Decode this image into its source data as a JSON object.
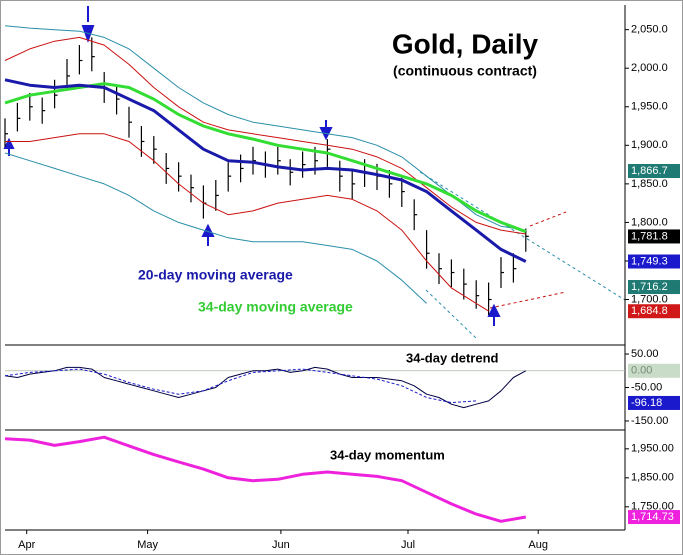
{
  "chart_data": [
    {
      "type": "ohlc",
      "title": "Gold, Daily",
      "subtitle": "(continuous contract)",
      "annotations": [
        "20-day moving average",
        "34-day moving average"
      ],
      "bar_color": "#000000",
      "x": [
        0,
        2,
        4,
        6,
        8,
        10,
        12,
        14,
        16,
        18,
        20,
        22,
        24,
        26,
        28,
        30,
        32,
        34,
        36,
        38,
        40,
        42,
        44,
        46,
        48,
        50,
        52,
        54,
        56,
        58,
        60,
        62,
        64,
        66,
        68,
        70,
        72,
        74,
        76,
        78,
        80,
        82,
        84
      ],
      "high": [
        1935,
        1955,
        1968,
        1962,
        1985,
        2012,
        2030,
        2040,
        1995,
        1978,
        1950,
        1925,
        1912,
        1890,
        1878,
        1862,
        1848,
        1855,
        1878,
        1888,
        1898,
        1892,
        1898,
        1882,
        1892,
        1898,
        1908,
        1880,
        1868,
        1882,
        1876,
        1868,
        1858,
        1830,
        1790,
        1760,
        1752,
        1740,
        1725,
        1722,
        1755,
        1760,
        1792
      ],
      "low": [
        1898,
        1918,
        1932,
        1928,
        1948,
        1972,
        1992,
        1996,
        1955,
        1940,
        1910,
        1885,
        1876,
        1850,
        1840,
        1826,
        1805,
        1815,
        1840,
        1852,
        1862,
        1858,
        1862,
        1848,
        1858,
        1862,
        1872,
        1840,
        1830,
        1846,
        1842,
        1832,
        1820,
        1790,
        1740,
        1720,
        1716,
        1700,
        1688,
        1680,
        1715,
        1722,
        1762
      ],
      "close": [
        1915,
        1935,
        1950,
        1945,
        1965,
        1990,
        2010,
        2015,
        1975,
        1960,
        1930,
        1905,
        1895,
        1870,
        1860,
        1845,
        1825,
        1835,
        1860,
        1870,
        1880,
        1875,
        1880,
        1865,
        1875,
        1880,
        1895,
        1860,
        1850,
        1865,
        1860,
        1850,
        1840,
        1810,
        1760,
        1740,
        1735,
        1720,
        1705,
        1700,
        1735,
        1740,
        1782
      ],
      "series": [
        {
          "name": "teal-upper",
          "color": "#2a8fa8",
          "width": 1,
          "x": [
            0,
            4,
            8,
            12,
            16,
            20,
            24,
            28,
            32,
            36,
            40,
            44,
            48,
            52,
            56,
            60,
            64,
            68,
            72,
            76,
            80,
            84
          ],
          "values": [
            2055,
            2052,
            2050,
            2048,
            2040,
            2025,
            2000,
            1975,
            1955,
            1940,
            1930,
            1925,
            1920,
            1915,
            1910,
            1900,
            1885,
            1860,
            1835,
            1810,
            1795,
            1790
          ]
        },
        {
          "name": "teal-lower",
          "color": "#2a8fa8",
          "width": 1,
          "x": [
            0,
            4,
            8,
            12,
            16,
            20,
            24,
            28,
            32,
            36,
            40,
            44,
            48,
            52,
            56,
            60,
            64,
            68
          ],
          "values": [
            1890,
            1880,
            1870,
            1860,
            1850,
            1835,
            1815,
            1800,
            1790,
            1780,
            1775,
            1775,
            1775,
            1770,
            1765,
            1750,
            1725,
            1695
          ]
        },
        {
          "name": "red-upper",
          "color": "#cc1111",
          "width": 1,
          "x": [
            0,
            4,
            8,
            12,
            16,
            20,
            24,
            28,
            32,
            36,
            40,
            44,
            48,
            52,
            56,
            60,
            64,
            68,
            72,
            76,
            80,
            84
          ],
          "values": [
            2010,
            2025,
            2035,
            2040,
            2030,
            2005,
            1975,
            1950,
            1930,
            1920,
            1915,
            1910,
            1905,
            1900,
            1895,
            1885,
            1870,
            1845,
            1820,
            1800,
            1790,
            1785
          ]
        },
        {
          "name": "red-lower",
          "color": "#cc1111",
          "width": 1,
          "x": [
            0,
            4,
            8,
            12,
            16,
            20,
            24,
            28,
            32,
            36,
            40,
            44,
            48,
            52,
            56,
            60,
            64,
            68,
            72,
            76,
            78
          ],
          "values": [
            1905,
            1905,
            1910,
            1915,
            1915,
            1905,
            1880,
            1850,
            1825,
            1810,
            1815,
            1825,
            1830,
            1835,
            1830,
            1815,
            1790,
            1750,
            1715,
            1695,
            1685
          ]
        },
        {
          "name": "34-day",
          "color": "#33dd33",
          "width": 3,
          "x": [
            0,
            4,
            8,
            12,
            16,
            20,
            24,
            28,
            32,
            36,
            40,
            44,
            48,
            52,
            56,
            60,
            64,
            68,
            72,
            76,
            80,
            84
          ],
          "values": [
            1955,
            1965,
            1970,
            1975,
            1980,
            1975,
            1960,
            1940,
            1925,
            1915,
            1908,
            1900,
            1895,
            1890,
            1880,
            1870,
            1860,
            1850,
            1835,
            1815,
            1800,
            1788
          ]
        },
        {
          "name": "20-day",
          "color": "#1a1aaa",
          "width": 3,
          "x": [
            0,
            4,
            8,
            12,
            16,
            20,
            24,
            28,
            32,
            36,
            40,
            44,
            48,
            52,
            56,
            60,
            64,
            68,
            72,
            76,
            80,
            84
          ],
          "values": [
            1985,
            1978,
            1975,
            1978,
            1975,
            1960,
            1945,
            1920,
            1895,
            1880,
            1878,
            1872,
            1868,
            1870,
            1868,
            1862,
            1855,
            1840,
            1815,
            1790,
            1765,
            1749.3
          ]
        }
      ],
      "ylim": [
        1641,
        2082
      ],
      "yticks": [
        {
          "value": 2050,
          "label": "2,050.0"
        },
        {
          "value": 2000,
          "label": "2,000.0"
        },
        {
          "value": 1950,
          "label": "1,950.0"
        },
        {
          "value": 1900,
          "label": "1,900.0"
        },
        {
          "value": 1850,
          "label": "1,850.0"
        },
        {
          "value": 1800,
          "label": "1,800.0"
        },
        {
          "value": 1750,
          "label": "1,750.0"
        },
        {
          "value": 1700,
          "label": "1,700.0"
        }
      ],
      "price_labels": [
        {
          "value": 1866.7,
          "label": "1,866.7",
          "color": "#1e7a72",
          "text_color": "#ffffff"
        },
        {
          "value": 1781.8,
          "label": "1,781.8",
          "color": "#000000",
          "text_color": "#ffffff"
        },
        {
          "value": 1749.3,
          "label": "1,749.3",
          "color": "#1a1acc",
          "text_color": "#ffffff"
        },
        {
          "value": 1716.2,
          "label": "1,716.2",
          "color": "#1e7a72",
          "text_color": "#ffffff"
        },
        {
          "value": 1684.8,
          "label": "1,684.8",
          "color": "#d01818",
          "text_color": "#ffffff"
        }
      ]
    },
    {
      "type": "line",
      "title": "34-day detrend",
      "reference": 0,
      "series": [
        {
          "name": "detrend",
          "color": "#000044",
          "width": 1,
          "x": [
            0,
            2,
            4,
            6,
            8,
            10,
            12,
            14,
            16,
            18,
            20,
            22,
            24,
            26,
            28,
            30,
            32,
            34,
            36,
            38,
            40,
            42,
            44,
            46,
            48,
            50,
            52,
            54,
            56,
            58,
            60,
            62,
            64,
            66,
            68,
            70,
            72,
            74,
            76,
            78,
            80,
            82,
            84
          ],
          "values": [
            -15,
            -20,
            -10,
            -5,
            0,
            10,
            10,
            5,
            -20,
            -30,
            -40,
            -50,
            -60,
            -70,
            -80,
            -70,
            -60,
            -50,
            -20,
            -10,
            0,
            0,
            5,
            -5,
            0,
            10,
            5,
            -10,
            -20,
            -20,
            -20,
            -25,
            -30,
            -45,
            -70,
            -80,
            -100,
            -110,
            -100,
            -90,
            -60,
            -20,
            0
          ]
        },
        {
          "name": "smoothed",
          "color": "#1a1acc",
          "width": 1,
          "dash": "3,2",
          "x": [
            0,
            4,
            8,
            12,
            16,
            20,
            24,
            28,
            32,
            36,
            40,
            44,
            48,
            52,
            56,
            60,
            64,
            68,
            72,
            76
          ],
          "values": [
            -15,
            -5,
            0,
            5,
            -10,
            -35,
            -55,
            -70,
            -60,
            -30,
            -5,
            0,
            5,
            -5,
            -15,
            -25,
            -45,
            -80,
            -95,
            -90
          ]
        }
      ],
      "ylim": [
        -177,
        77
      ],
      "yticks": [
        {
          "value": 50,
          "label": "50.00"
        },
        {
          "value": -50,
          "label": "-50.00"
        },
        {
          "value": -150,
          "label": "-150.00"
        }
      ],
      "price_labels": [
        {
          "value": 0,
          "label": "0.00",
          "color": "#c8dcc8",
          "text_color": "#7a8a7a"
        },
        {
          "value": -96.18,
          "label": "-96.18",
          "color": "#1a1acc",
          "text_color": "#ffffff"
        }
      ]
    },
    {
      "type": "line",
      "title": "34-day momentum",
      "series": [
        {
          "name": "momentum",
          "color": "#ee22dd",
          "width": 3,
          "x": [
            0,
            4,
            8,
            12,
            16,
            20,
            24,
            28,
            32,
            36,
            40,
            44,
            48,
            52,
            56,
            60,
            64,
            68,
            72,
            76,
            80,
            84
          ],
          "values": [
            1985,
            1980,
            1962,
            1975,
            1990,
            1960,
            1930,
            1905,
            1880,
            1850,
            1840,
            1845,
            1862,
            1870,
            1862,
            1855,
            1840,
            1800,
            1760,
            1725,
            1700,
            1714.73
          ]
        }
      ],
      "ylim": [
        1670,
        2015
      ],
      "yticks": [
        {
          "value": 1950,
          "label": "1,950.00"
        },
        {
          "value": 1850,
          "label": "1,850.00"
        },
        {
          "value": 1750,
          "label": "1,750.00"
        }
      ],
      "price_labels": [
        {
          "value": 1714.73,
          "label": "1,714.73",
          "color": "#ee22dd",
          "text_color": "#ffffff"
        }
      ],
      "xlim": [
        0,
        100
      ],
      "xticks": [
        {
          "value": 3.5,
          "label": "Apr"
        },
        {
          "value": 23,
          "label": "May"
        },
        {
          "value": 44.5,
          "label": "Jun"
        },
        {
          "value": 65,
          "label": "Jul"
        },
        {
          "value": 86,
          "label": "Aug"
        }
      ]
    }
  ]
}
